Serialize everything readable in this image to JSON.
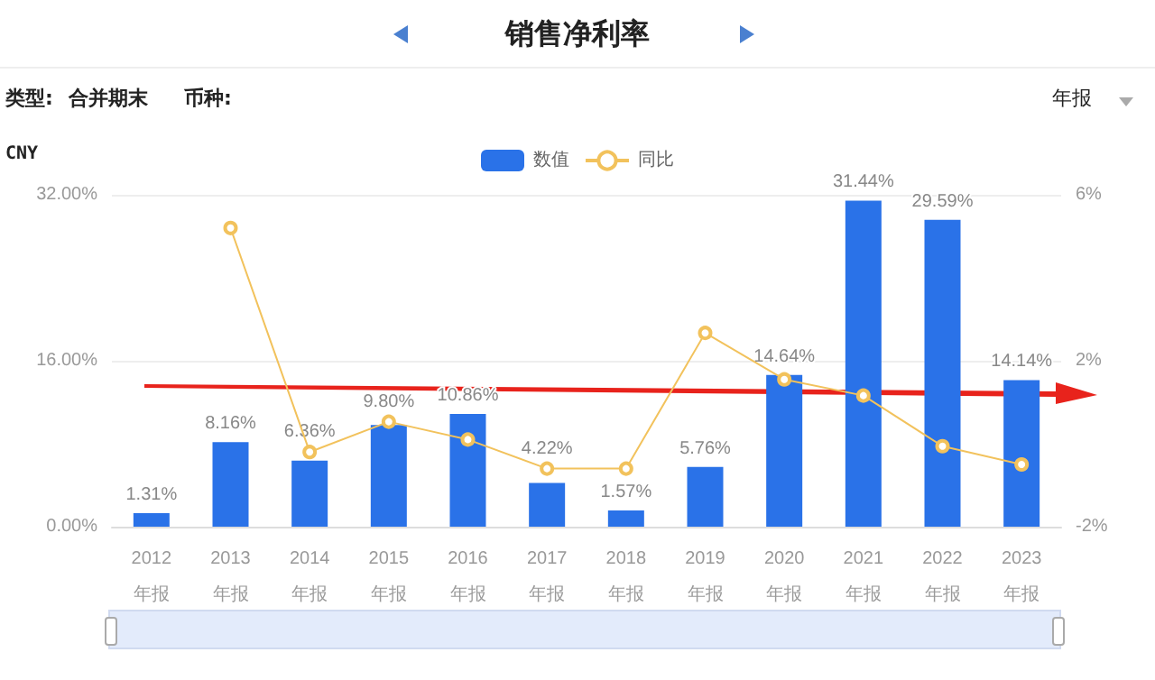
{
  "chart_data": {
    "type": "bar",
    "title": "销售净利率",
    "annotations": [
      "类型:",
      "合并期末",
      "币种:",
      "年报",
      "CNY"
    ],
    "categories": [
      "2012\n年报",
      "2013\n年报",
      "2014\n年报",
      "2015\n年报",
      "2016\n年报",
      "2017\n年报",
      "2018\n年报",
      "2019\n年报",
      "2020\n年报",
      "2021\n年报",
      "2022\n年报",
      "2023\n年报"
    ],
    "series": [
      {
        "name": "数值",
        "color": "#2a72e8",
        "values": [
          1.31,
          8.16,
          6.36,
          9.8,
          10.86,
          4.22,
          1.57,
          5.76,
          14.64,
          31.44,
          29.59,
          14.14
        ],
        "value_labels": [
          "1.31%",
          "8.16%",
          "6.36%",
          "9.80%",
          "10.86%",
          "4.22%",
          "1.57%",
          "5.76%",
          "14.64%",
          "31.44%",
          "29.59%",
          "14.14%"
        ]
      },
      {
        "name": "同比",
        "type": "line",
        "axis": "y2",
        "color": "#f2c25c",
        "values": [
          null,
          5.2,
          -0.2,
          0.53,
          0.1,
          -0.6,
          -0.6,
          2.67,
          1.55,
          1.16,
          -0.06,
          -0.5
        ]
      }
    ],
    "ylim": [
      0,
      32
    ],
    "yticks": [
      {
        "value": 0,
        "label": "0.00%"
      },
      {
        "value": 16,
        "label": "16.00%"
      },
      {
        "value": 32,
        "label": "32.00%"
      }
    ],
    "y2lim": [
      -2,
      6
    ],
    "y2ticks": [
      {
        "value": -2,
        "label": "-2%"
      },
      {
        "value": 2,
        "label": "2%"
      },
      {
        "value": 6,
        "label": "6%"
      }
    ],
    "grid": "y",
    "legend": "top",
    "marker": "circle",
    "line_style": "solid"
  }
}
